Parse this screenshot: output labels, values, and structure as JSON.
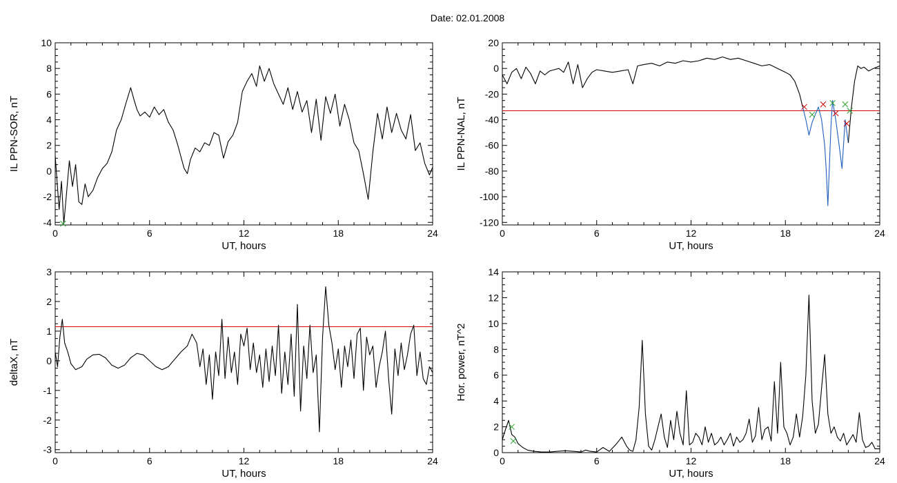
{
  "title": "Date:  02.01.2008",
  "chart_data": [
    {
      "type": "line",
      "xlabel": "UT, hours",
      "ylabel": "IL PPN-SOR, nT",
      "xlim": [
        0,
        24
      ],
      "ylim": [
        -4.2,
        10
      ],
      "xticks": [
        0,
        6,
        12,
        18,
        24
      ],
      "yticks": [
        -4,
        -2,
        0,
        2,
        4,
        6,
        8,
        10
      ],
      "series": [
        {
          "color": "#000000",
          "x": [
            0,
            0.25,
            0.4,
            0.55,
            0.7,
            0.9,
            1.1,
            1.3,
            1.5,
            1.7,
            1.9,
            2.1,
            2.4,
            2.7,
            3.0,
            3.3,
            3.6,
            3.9,
            4.2,
            4.5,
            4.8,
            5.0,
            5.2,
            5.4,
            5.7,
            6.0,
            6.3,
            6.6,
            6.9,
            7.2,
            7.5,
            7.8,
            8.0,
            8.2,
            8.4,
            8.6,
            8.9,
            9.2,
            9.5,
            9.8,
            10.1,
            10.4,
            10.7,
            11.0,
            11.3,
            11.6,
            11.9,
            12.2,
            12.5,
            12.8,
            13.0,
            13.3,
            13.6,
            13.9,
            14.2,
            14.5,
            14.8,
            15.1,
            15.4,
            15.7,
            16.0,
            16.3,
            16.6,
            16.9,
            17.2,
            17.5,
            17.8,
            18.1,
            18.4,
            18.7,
            19.0,
            19.3,
            19.6,
            19.9,
            20.2,
            20.5,
            20.8,
            21.1,
            21.4,
            21.7,
            22.0,
            22.3,
            22.6,
            22.9,
            23.2,
            23.5,
            23.8,
            24.0
          ],
          "y": [
            1.2,
            -3.0,
            -0.8,
            -4.1,
            -2.0,
            0.8,
            -1.2,
            0.5,
            -2.4,
            -2.6,
            -1.0,
            -2.0,
            -1.5,
            -0.5,
            0.2,
            0.6,
            1.5,
            3.2,
            4.0,
            5.3,
            6.5,
            5.6,
            4.8,
            4.3,
            4.6,
            4.2,
            5.0,
            4.4,
            4.8,
            3.8,
            3.2,
            2.0,
            1.1,
            0.2,
            -0.2,
            0.9,
            1.8,
            1.5,
            2.2,
            2.0,
            3.0,
            2.8,
            1.0,
            2.3,
            2.8,
            3.8,
            6.2,
            7.0,
            7.6,
            6.6,
            8.2,
            7.0,
            8.0,
            6.8,
            6.0,
            5.2,
            6.5,
            4.8,
            6.2,
            4.6,
            5.5,
            3.0,
            5.6,
            2.4,
            5.8,
            4.5,
            6.0,
            3.5,
            5.2,
            4.0,
            2.2,
            1.6,
            -0.2,
            -2.2,
            1.5,
            4.5,
            2.5,
            5.0,
            3.0,
            4.5,
            3.2,
            2.5,
            4.4,
            1.6,
            2.2,
            0.6,
            -0.3,
            0.3
          ]
        }
      ],
      "markers": [
        {
          "x": 0.5,
          "y": -4.1,
          "symbol": "x",
          "color": "#2ea02e"
        }
      ]
    },
    {
      "type": "line",
      "xlabel": "UT, hours",
      "ylabel": "IL PPN-NAL, nT",
      "xlim": [
        0,
        24
      ],
      "ylim": [
        -122,
        20
      ],
      "xticks": [
        0,
        6,
        12,
        18,
        24
      ],
      "yticks": [
        -120,
        -100,
        -80,
        -60,
        -40,
        -20,
        0,
        20
      ],
      "hline": {
        "y": -33,
        "color": "#d00000"
      },
      "series": [
        {
          "color": "#000000",
          "x": [
            0,
            0.3,
            0.6,
            0.9,
            1.2,
            1.5,
            1.8,
            2.1,
            2.4,
            2.7,
            3.0,
            3.3,
            3.6,
            3.9,
            4.2,
            4.5,
            4.8,
            5.1,
            5.4,
            5.7,
            6.0,
            6.5,
            7.0,
            7.5,
            8.0,
            8.3,
            8.6,
            9.0,
            9.5,
            10.0,
            10.5,
            11.0,
            11.5,
            12.0,
            12.5,
            13.0,
            13.5,
            14.0,
            14.5,
            15.0,
            15.5,
            16.0,
            16.5,
            17.0,
            17.5,
            18.0,
            18.3,
            18.6,
            18.9,
            19.1
          ],
          "y": [
            -5,
            -12,
            -3,
            0,
            -8,
            1,
            -4,
            -12,
            -2,
            -5,
            -2,
            -1,
            0,
            -3,
            5,
            -12,
            3,
            -15,
            -8,
            -3,
            -1,
            -2,
            -3,
            -2,
            -1,
            -12,
            2,
            3,
            4,
            2,
            5,
            4,
            6,
            5,
            6,
            8,
            7,
            9,
            7,
            8,
            6,
            4,
            2,
            3,
            0,
            -3,
            -5,
            -10,
            -20,
            -30
          ]
        },
        {
          "color": "#1f5fbf",
          "x": [
            19.1,
            19.3,
            19.5,
            19.7,
            19.9,
            20.1,
            20.3,
            20.5,
            20.6,
            20.7,
            20.8,
            20.9,
            21.0,
            21.2,
            21.4,
            21.6,
            21.8,
            22.0
          ],
          "y": [
            -30,
            -40,
            -52,
            -42,
            -36,
            -30,
            -40,
            -60,
            -80,
            -107,
            -75,
            -45,
            -25,
            -40,
            -58,
            -78,
            -40,
            -58
          ]
        },
        {
          "color": "#000000",
          "x": [
            22.0,
            22.2,
            22.4,
            22.6,
            22.8,
            23.0,
            23.3,
            23.6,
            24.0
          ],
          "y": [
            -58,
            -30,
            -10,
            2,
            0,
            1,
            -2,
            0,
            2
          ]
        }
      ],
      "markers": [
        {
          "x": 19.2,
          "y": -30,
          "symbol": "x",
          "color": "#d00000"
        },
        {
          "x": 20.4,
          "y": -28,
          "symbol": "x",
          "color": "#d00000"
        },
        {
          "x": 21.2,
          "y": -35,
          "symbol": "x",
          "color": "#d00000"
        },
        {
          "x": 21.9,
          "y": -43,
          "symbol": "x",
          "color": "#d00000"
        },
        {
          "x": 19.7,
          "y": -36,
          "symbol": "x",
          "color": "#2ea02e"
        },
        {
          "x": 21.0,
          "y": -27,
          "symbol": "x",
          "color": "#2ea02e"
        },
        {
          "x": 21.8,
          "y": -28,
          "symbol": "x",
          "color": "#2ea02e"
        },
        {
          "x": 22.1,
          "y": -33,
          "symbol": "x",
          "color": "#2ea02e"
        }
      ]
    },
    {
      "type": "line",
      "xlabel": "UT, hours",
      "ylabel": "deltaX, nT",
      "xlim": [
        0,
        24
      ],
      "ylim": [
        -3.1,
        3
      ],
      "xticks": [
        0,
        6,
        12,
        18,
        24
      ],
      "yticks": [
        -3,
        -2,
        -1,
        0,
        1,
        2,
        3
      ],
      "hline": {
        "y": 1.15,
        "color": "#d00000"
      },
      "series": [
        {
          "color": "#000000",
          "x": [
            0,
            0.15,
            0.3,
            0.45,
            0.6,
            0.8,
            1.0,
            1.3,
            1.7,
            2.0,
            2.4,
            2.8,
            3.2,
            3.6,
            4.0,
            4.4,
            4.8,
            5.2,
            5.6,
            6.0,
            6.4,
            6.8,
            7.2,
            7.6,
            8.0,
            8.4,
            8.7,
            9.0,
            9.2,
            9.4,
            9.6,
            9.8,
            10.0,
            10.2,
            10.4,
            10.6,
            10.8,
            11.0,
            11.2,
            11.4,
            11.6,
            11.8,
            12.0,
            12.2,
            12.4,
            12.6,
            12.8,
            13.0,
            13.2,
            13.4,
            13.6,
            13.8,
            14.0,
            14.2,
            14.4,
            14.6,
            14.8,
            15.0,
            15.2,
            15.4,
            15.6,
            15.8,
            16.0,
            16.2,
            16.4,
            16.6,
            16.8,
            17.0,
            17.2,
            17.4,
            17.6,
            17.8,
            18.0,
            18.2,
            18.4,
            18.6,
            18.8,
            19.0,
            19.2,
            19.4,
            19.6,
            19.8,
            20.0,
            20.2,
            20.4,
            20.6,
            20.8,
            21.0,
            21.2,
            21.4,
            21.6,
            21.8,
            22.0,
            22.2,
            22.4,
            22.6,
            22.8,
            23.0,
            23.2,
            23.4,
            23.6,
            23.8,
            24.0
          ],
          "y": [
            0.3,
            -0.2,
            0.8,
            1.4,
            0.6,
            0.3,
            -0.1,
            -0.3,
            -0.2,
            0.05,
            0.2,
            0.22,
            0.1,
            -0.15,
            -0.25,
            -0.15,
            0.1,
            0.25,
            0.2,
            0.0,
            -0.2,
            -0.3,
            -0.2,
            0.05,
            0.3,
            0.5,
            0.9,
            0.6,
            -0.2,
            0.4,
            -0.8,
            0.2,
            -1.3,
            0.3,
            -0.5,
            1.4,
            -0.6,
            0.8,
            -0.4,
            0.3,
            -0.8,
            0.9,
            0.5,
            1.1,
            -0.3,
            0.6,
            -0.4,
            0.2,
            -0.9,
            0.4,
            -0.7,
            0.5,
            -0.5,
            1.2,
            -1.1,
            0.3,
            -0.8,
            0.9,
            -1.2,
            1.9,
            -1.7,
            0.5,
            -0.6,
            1.2,
            -0.4,
            0.2,
            -2.4,
            0.8,
            2.5,
            1.2,
            0.6,
            -0.3,
            0.4,
            -0.9,
            0.5,
            -0.2,
            0.7,
            -0.6,
            0.9,
            1.1,
            -1.0,
            0.8,
            0.2,
            0.5,
            -0.9,
            -0.2,
            0.3,
            1.0,
            -0.6,
            -1.8,
            0.4,
            -0.5,
            0.6,
            -0.3,
            0.2,
            0.9,
            1.2,
            -0.5,
            0.3,
            -0.6,
            -0.8,
            -0.2,
            -0.4
          ]
        }
      ],
      "markers": []
    },
    {
      "type": "line",
      "xlabel": "UT, hours",
      "ylabel": "Hor. power, nT^2",
      "xlim": [
        0,
        24
      ],
      "ylim": [
        0,
        14
      ],
      "xticks": [
        0,
        6,
        12,
        18,
        24
      ],
      "yticks": [
        0,
        2,
        4,
        6,
        8,
        10,
        12,
        14
      ],
      "series": [
        {
          "color": "#000000",
          "x": [
            0,
            0.2,
            0.4,
            0.6,
            0.8,
            1.0,
            1.3,
            1.6,
            2.0,
            2.5,
            3.0,
            3.5,
            4.0,
            4.5,
            5.0,
            5.3,
            5.6,
            6.0,
            6.4,
            6.8,
            7.2,
            7.6,
            7.9,
            8.1,
            8.3,
            8.5,
            8.7,
            8.9,
            9.1,
            9.3,
            9.5,
            9.7,
            9.9,
            10.1,
            10.3,
            10.5,
            10.7,
            10.9,
            11.1,
            11.3,
            11.5,
            11.7,
            11.9,
            12.1,
            12.3,
            12.5,
            12.7,
            12.9,
            13.1,
            13.3,
            13.5,
            13.7,
            13.9,
            14.1,
            14.3,
            14.5,
            14.7,
            14.9,
            15.1,
            15.3,
            15.5,
            15.7,
            15.9,
            16.1,
            16.3,
            16.5,
            16.7,
            16.9,
            17.1,
            17.3,
            17.5,
            17.7,
            17.9,
            18.1,
            18.3,
            18.5,
            18.7,
            18.9,
            19.1,
            19.3,
            19.5,
            19.7,
            19.9,
            20.1,
            20.3,
            20.5,
            20.7,
            20.9,
            21.1,
            21.3,
            21.5,
            21.7,
            21.9,
            22.1,
            22.3,
            22.5,
            22.7,
            22.9,
            23.1,
            23.3,
            23.5,
            23.7,
            24.0
          ],
          "y": [
            1.0,
            1.8,
            2.5,
            1.4,
            1.2,
            0.7,
            0.4,
            0.2,
            0.1,
            0.05,
            0.05,
            0.1,
            0.15,
            0.1,
            0.05,
            0.2,
            0.1,
            0.05,
            0.4,
            0.1,
            0.6,
            1.2,
            0.5,
            0.2,
            0.1,
            1.0,
            3.5,
            8.7,
            3.0,
            0.5,
            0.2,
            1.0,
            2.0,
            3.0,
            1.2,
            0.4,
            2.5,
            1.0,
            3.2,
            1.5,
            0.6,
            4.8,
            0.6,
            0.8,
            1.5,
            1.2,
            0.6,
            2.0,
            0.8,
            1.5,
            0.6,
            0.8,
            1.2,
            0.6,
            1.0,
            1.5,
            0.5,
            1.2,
            0.8,
            1.0,
            1.5,
            2.6,
            0.8,
            1.3,
            3.5,
            1.0,
            1.8,
            2.0,
            0.9,
            5.5,
            1.5,
            7.0,
            2.0,
            1.5,
            0.6,
            1.2,
            3.0,
            1.2,
            2.8,
            6.0,
            12.2,
            4.0,
            1.5,
            2.2,
            5.0,
            7.6,
            3.0,
            1.5,
            2.0,
            1.2,
            0.9,
            1.5,
            0.6,
            1.0,
            1.4,
            0.8,
            3.1,
            1.0,
            0.4,
            0.5,
            0.8,
            0.3,
            0.3
          ]
        }
      ],
      "markers": [
        {
          "x": 0.6,
          "y": 2.0,
          "symbol": "x",
          "color": "#2ea02e"
        },
        {
          "x": 0.7,
          "y": 0.9,
          "symbol": "x",
          "color": "#2ea02e"
        }
      ]
    }
  ]
}
